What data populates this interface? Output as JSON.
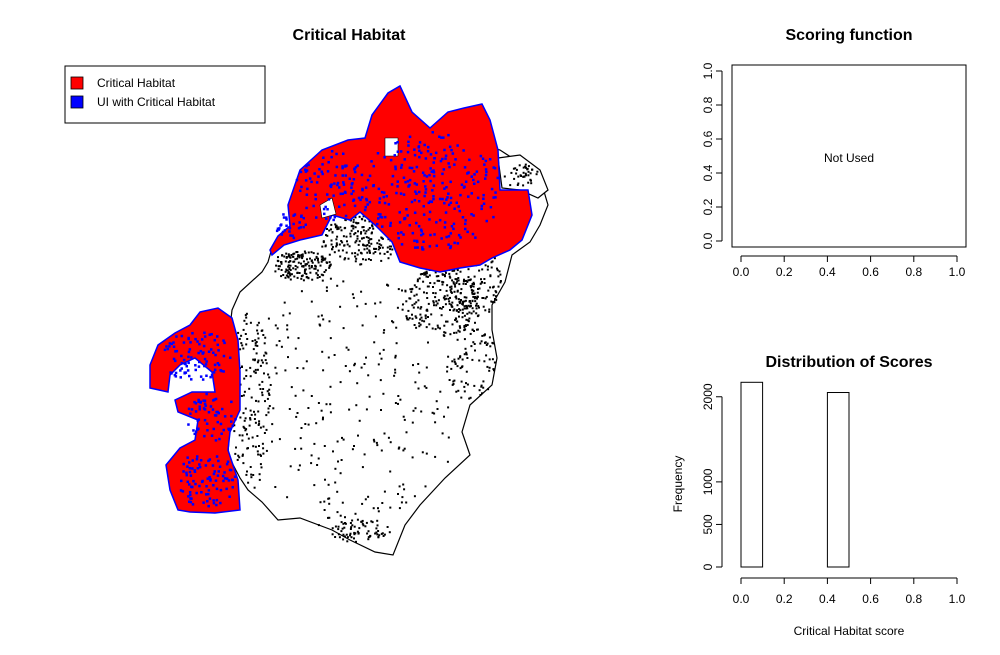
{
  "map": {
    "title": "Critical Habitat",
    "legend": [
      {
        "label": "Critical Habitat",
        "color": "#ff0000"
      },
      {
        "label": "UI with Critical Habitat",
        "color": "#0000ff"
      }
    ]
  },
  "chart_data": [
    {
      "type": "line",
      "title": "Scoring function",
      "xlabel": "",
      "ylabel": "",
      "xlim": [
        0,
        1
      ],
      "ylim": [
        0,
        1
      ],
      "xticks": [
        "0.0",
        "0.2",
        "0.4",
        "0.6",
        "0.8",
        "1.0"
      ],
      "yticks": [
        "0.0",
        "0.2",
        "0.4",
        "0.6",
        "0.8",
        "1.0"
      ],
      "annotation": "Not Used",
      "series": []
    },
    {
      "type": "bar",
      "title": "Distribution of Scores",
      "xlabel": "Critical Habitat score",
      "ylabel": "Frequency",
      "xlim": [
        0,
        1
      ],
      "ylim": [
        0,
        2150
      ],
      "xticks": [
        "0.0",
        "0.2",
        "0.4",
        "0.6",
        "0.8",
        "1.0"
      ],
      "yticks": [
        "0",
        "500",
        "1000",
        "2000"
      ],
      "bins": [
        {
          "x0": 0.0,
          "x1": 0.1,
          "count": 2170
        },
        {
          "x0": 0.1,
          "x1": 0.2,
          "count": 0
        },
        {
          "x0": 0.2,
          "x1": 0.3,
          "count": 0
        },
        {
          "x0": 0.3,
          "x1": 0.4,
          "count": 0
        },
        {
          "x0": 0.4,
          "x1": 0.5,
          "count": 2050
        },
        {
          "x0": 0.5,
          "x1": 0.6,
          "count": 0
        },
        {
          "x0": 0.6,
          "x1": 0.7,
          "count": 0
        },
        {
          "x0": 0.7,
          "x1": 0.8,
          "count": 0
        },
        {
          "x0": 0.8,
          "x1": 0.9,
          "count": 0
        },
        {
          "x0": 0.9,
          "x1": 1.0,
          "count": 0
        }
      ]
    }
  ]
}
